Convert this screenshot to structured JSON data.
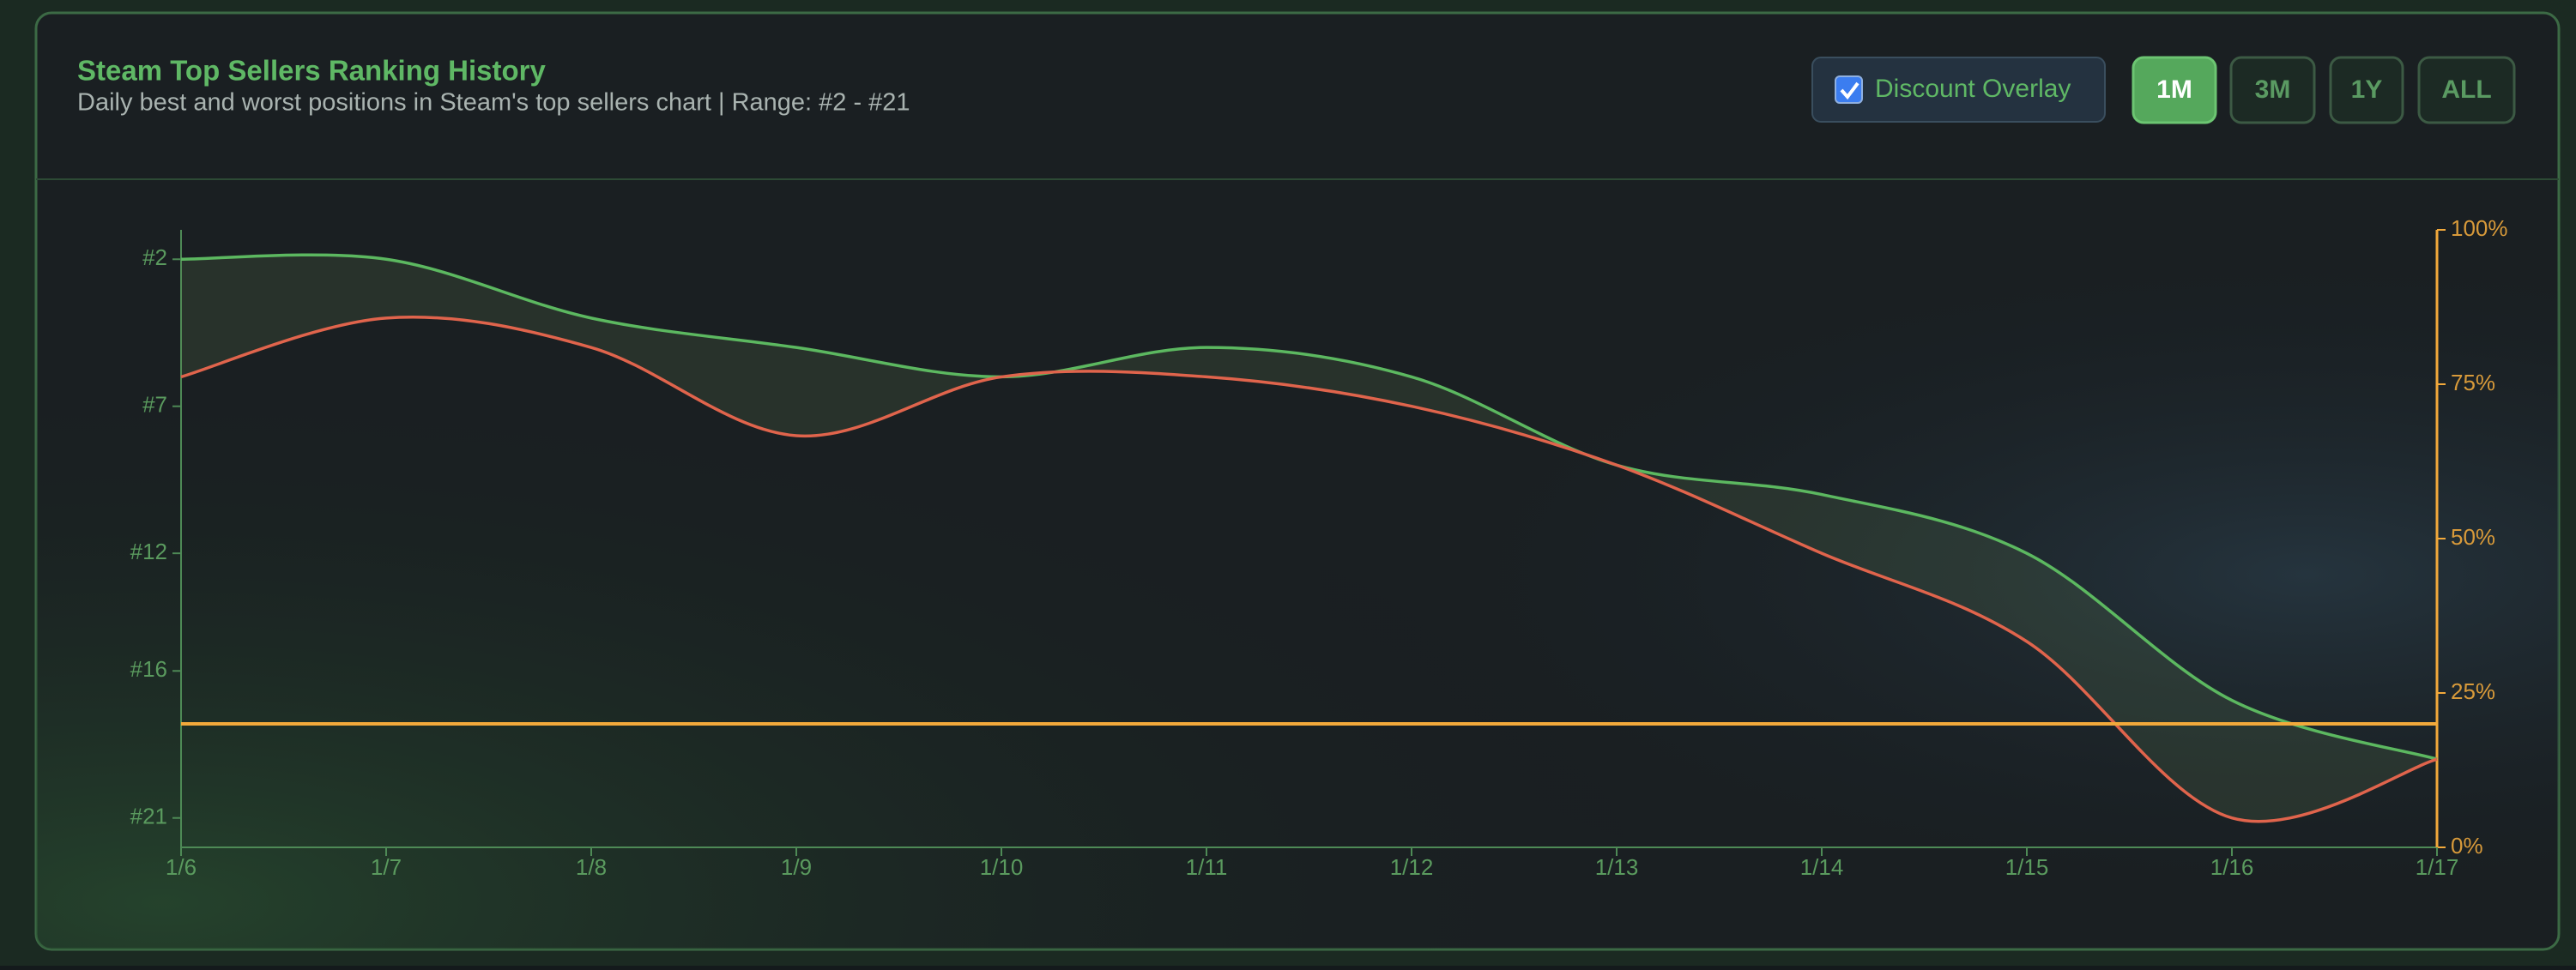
{
  "chart_data": {
    "type": "line",
    "title": "Steam Top Sellers Ranking History",
    "subtitle": "Daily best and worst positions in Steam's top sellers chart | Range: #2 - #21",
    "categories": [
      "1/6",
      "1/7",
      "1/8",
      "1/9",
      "1/10",
      "1/11",
      "1/12",
      "1/13",
      "1/14",
      "1/15",
      "1/16",
      "1/17"
    ],
    "series": [
      {
        "color": "#5cb860",
        "values": [
          2,
          2,
          4,
          5,
          6,
          5,
          6,
          9,
          10,
          12,
          17,
          19
        ]
      },
      {
        "color": "#e0644c",
        "values": [
          6,
          4,
          5,
          8,
          6,
          6,
          7,
          9,
          12,
          15,
          21,
          19
        ]
      },
      {
        "color": "#f2a93b",
        "axis": "y2",
        "values": [
          20,
          20,
          20,
          20,
          20,
          20,
          20,
          20,
          20,
          20,
          20,
          20
        ]
      }
    ],
    "ylim": [
      22,
      1
    ],
    "yticks": [
      {
        "value": 2,
        "label": "#2"
      },
      {
        "value": 7,
        "label": "#7"
      },
      {
        "value": 12,
        "label": "#12"
      },
      {
        "value": 16,
        "label": "#16"
      },
      {
        "value": 21,
        "label": "#21"
      }
    ],
    "y2lim": [
      0,
      100
    ],
    "y2ticks": [
      {
        "value": 0,
        "label": "0%"
      },
      {
        "value": 25,
        "label": "25%"
      },
      {
        "value": 50,
        "label": "50%"
      },
      {
        "value": 75,
        "label": "75%"
      },
      {
        "value": 100,
        "label": "100%"
      }
    ]
  },
  "controls": {
    "discount_overlay": {
      "label": "Discount Overlay",
      "checked": true
    },
    "ranges": [
      "1M",
      "3M",
      "1Y",
      "ALL"
    ],
    "active": "1M"
  }
}
